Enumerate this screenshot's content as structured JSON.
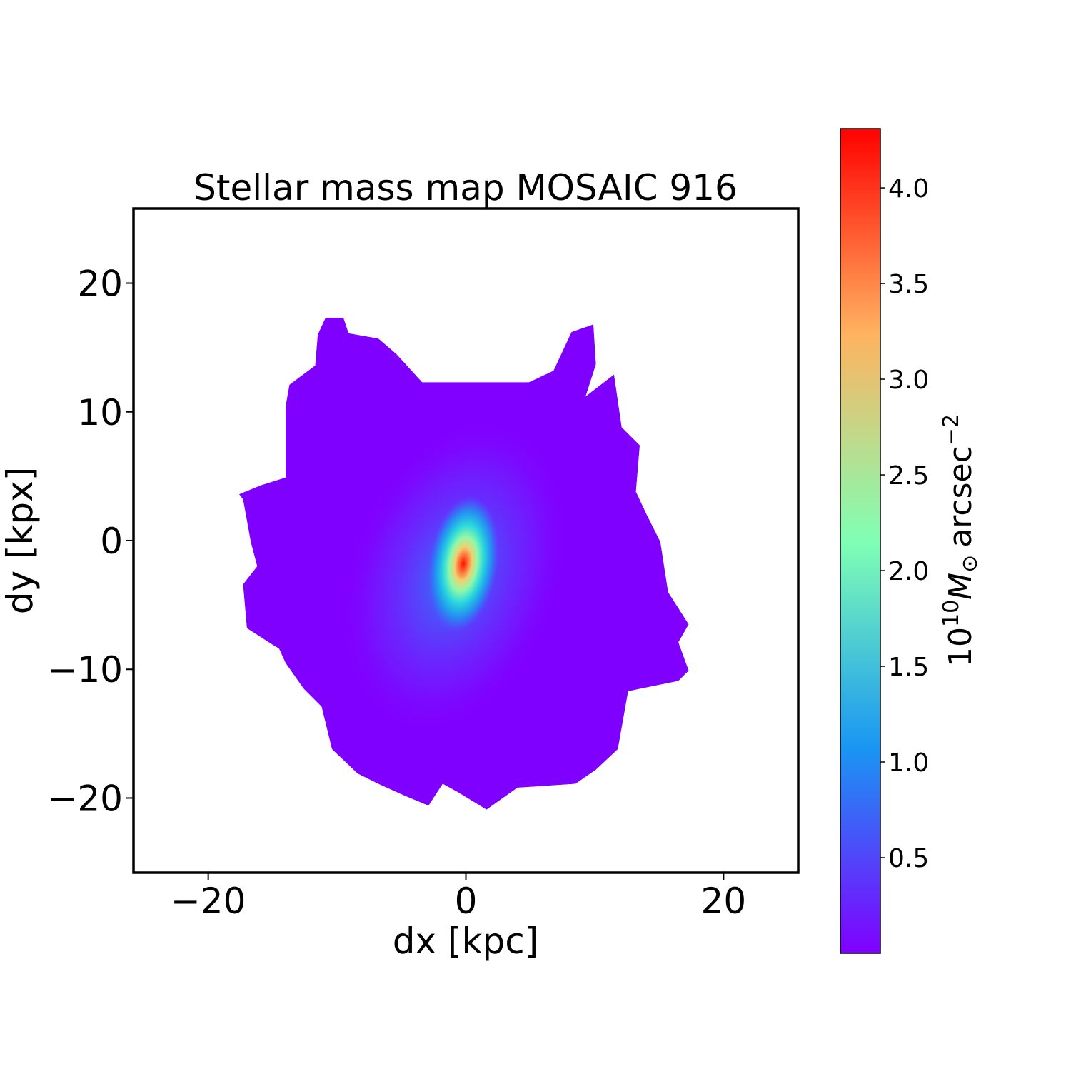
{
  "chart_data": {
    "type": "heatmap",
    "title": "Stellar mass map MOSAIC 916",
    "xlabel": "dx [kpc]",
    "ylabel": "dy [kpx]",
    "xlim": [
      -25.8,
      25.8
    ],
    "ylim": [
      -25.8,
      25.8
    ],
    "xticks": [
      -20,
      0,
      20
    ],
    "yticks": [
      -20,
      -10,
      0,
      10,
      20
    ],
    "xtick_labels": [
      "−20",
      "0",
      "20"
    ],
    "ytick_labels": [
      "−20",
      "−10",
      "0",
      "10",
      "20"
    ],
    "grid": false,
    "colormap": "rainbow",
    "colorbar": {
      "label_base": "10",
      "label_exp": "10",
      "label_symbol": "M",
      "label_sub": "⊙",
      "label_unit": "arcsec",
      "label_unit_exp": "−2",
      "range": [
        0.0,
        4.31
      ],
      "ticks": [
        0.5,
        1.0,
        1.5,
        2.0,
        2.5,
        3.0,
        3.5,
        4.0
      ],
      "tick_labels": [
        "0.5",
        "1.0",
        "1.5",
        "2.0",
        "2.5",
        "3.0",
        "3.5",
        "4.0"
      ],
      "colors": [
        "#8000ff",
        "#1996f3",
        "#80ffb4",
        "#ffb360",
        "#ff0000"
      ]
    },
    "peak": {
      "dx": -0.2,
      "dy": -1.8,
      "value": 4.3
    },
    "background_value": 0.02,
    "mask_outline_kpc": [
      [
        -10.9,
        17.3
      ],
      [
        -9.5,
        17.3
      ],
      [
        -9.1,
        16.1
      ],
      [
        -6.8,
        15.7
      ],
      [
        -5.4,
        14.5
      ],
      [
        -3.4,
        12.3
      ],
      [
        4.9,
        12.3
      ],
      [
        6.8,
        13.2
      ],
      [
        8.2,
        16.2
      ],
      [
        9.9,
        16.8
      ],
      [
        10.1,
        13.7
      ],
      [
        9.3,
        11.2
      ],
      [
        11.5,
        12.9
      ],
      [
        12.1,
        8.8
      ],
      [
        13.5,
        7.4
      ],
      [
        13.2,
        3.8
      ],
      [
        14.0,
        2.1
      ],
      [
        15.1,
        -0.1
      ],
      [
        15.7,
        -4.0
      ],
      [
        17.3,
        -6.5
      ],
      [
        16.5,
        -7.9
      ],
      [
        17.3,
        -10.1
      ],
      [
        16.5,
        -10.9
      ],
      [
        12.6,
        -11.7
      ],
      [
        11.8,
        -16.2
      ],
      [
        10.1,
        -17.8
      ],
      [
        8.5,
        -18.9
      ],
      [
        4.0,
        -19.2
      ],
      [
        1.6,
        -20.9
      ],
      [
        -0.7,
        -19.5
      ],
      [
        -1.8,
        -18.9
      ],
      [
        -2.9,
        -20.6
      ],
      [
        -4.8,
        -19.8
      ],
      [
        -6.8,
        -18.9
      ],
      [
        -8.4,
        -18.1
      ],
      [
        -10.4,
        -16.2
      ],
      [
        -11.2,
        -12.9
      ],
      [
        -12.6,
        -11.5
      ],
      [
        -14.0,
        -9.5
      ],
      [
        -14.5,
        -8.4
      ],
      [
        -15.3,
        -7.9
      ],
      [
        -17.0,
        -6.8
      ],
      [
        -17.3,
        -3.4
      ],
      [
        -16.2,
        -2.0
      ],
      [
        -16.7,
        -0.1
      ],
      [
        -17.3,
        3.2
      ],
      [
        -17.6,
        3.6
      ],
      [
        -15.9,
        4.3
      ],
      [
        -14.0,
        4.9
      ],
      [
        -14.0,
        10.4
      ],
      [
        -13.7,
        12.1
      ],
      [
        -11.7,
        13.6
      ],
      [
        -11.5,
        16.0
      ]
    ]
  }
}
